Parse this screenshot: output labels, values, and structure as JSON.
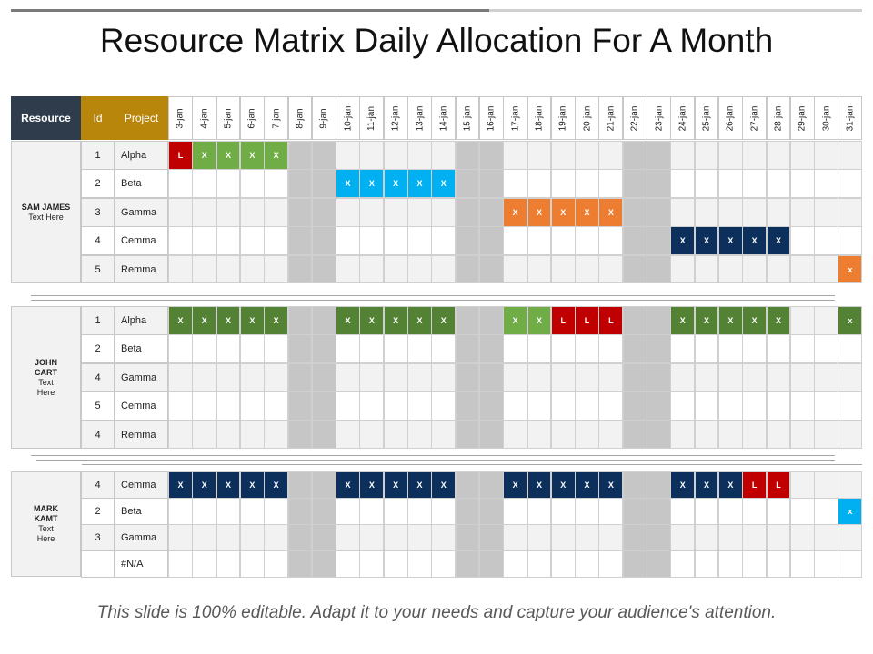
{
  "title": "Resource Matrix Daily Allocation For A Month",
  "footer": "This slide is 100% editable. Adapt it to your needs and capture your audience's attention.",
  "header": {
    "resource": "Resource",
    "id": "Id",
    "project": "Project"
  },
  "dates": [
    "3-jan",
    "4-jan",
    "5-jan",
    "6-jan",
    "7-jan",
    "8-jan",
    "9-jan",
    "10-jan",
    "11-jan",
    "12-jan",
    "13-jan",
    "14-jan",
    "15-jan",
    "16-jan",
    "17-jan",
    "18-jan",
    "19-jan",
    "20-jan",
    "21-jan",
    "22-jan",
    "23-jan",
    "24-jan",
    "25-jan",
    "26-jan",
    "27-jan",
    "28-jan",
    "29-jan",
    "30-jan",
    "31-jan"
  ],
  "weekend_day_indexes": [
    5,
    6,
    12,
    13,
    19,
    20
  ],
  "colors": {
    "red": "#c00000",
    "green": "#70ad47",
    "dgreen": "#548235",
    "blue": "#00b0f0",
    "orange": "#ed7d31",
    "navy": "#0d2f5c",
    "weekend": "#c6c6c6",
    "row_even": "#f2f2f2",
    "row_odd": "#ffffff",
    "header_dark": "#2f3c4c",
    "header_gold": "#b8860b"
  },
  "groups": [
    {
      "name": "SAM JAMES",
      "sub": "Text Here",
      "rows": [
        {
          "id": "1",
          "project": "Alpha",
          "marks": [
            {
              "start": 0,
              "labels": [
                "L"
              ],
              "color": "red"
            },
            {
              "start": 1,
              "labels": [
                "X",
                "X",
                "X",
                "X"
              ],
              "color": "green"
            }
          ]
        },
        {
          "id": "2",
          "project": "Beta",
          "marks": [
            {
              "start": 7,
              "labels": [
                "X",
                "X",
                "X",
                "X",
                "X"
              ],
              "color": "blue"
            }
          ]
        },
        {
          "id": "3",
          "project": "Gamma",
          "marks": [
            {
              "start": 14,
              "labels": [
                "X",
                "X",
                "X",
                "X",
                "X"
              ],
              "color": "orange"
            }
          ]
        },
        {
          "id": "4",
          "project": "Cemma",
          "marks": [
            {
              "start": 21,
              "labels": [
                "X",
                "X",
                "X",
                "X",
                "X"
              ],
              "color": "navy"
            }
          ]
        },
        {
          "id": "5",
          "project": "Remma",
          "marks": [
            {
              "start": 28,
              "labels": [
                "x"
              ],
              "color": "orange"
            }
          ]
        }
      ]
    },
    {
      "name": "JOHN CART",
      "sub": "Text Here",
      "rows": [
        {
          "id": "1",
          "project": "Alpha",
          "marks": [
            {
              "start": 0,
              "labels": [
                "X",
                "X",
                "X",
                "X",
                "X"
              ],
              "color": "dgreen"
            },
            {
              "start": 7,
              "labels": [
                "X",
                "X",
                "X",
                "X",
                "X"
              ],
              "color": "dgreen"
            },
            {
              "start": 14,
              "labels": [
                "X",
                "X"
              ],
              "color": "green"
            },
            {
              "start": 16,
              "labels": [
                "L",
                "L",
                "L"
              ],
              "color": "red"
            },
            {
              "start": 21,
              "labels": [
                "X",
                "X",
                "X",
                "X",
                "X"
              ],
              "color": "dgreen"
            },
            {
              "start": 28,
              "labels": [
                "x"
              ],
              "color": "dgreen"
            }
          ]
        },
        {
          "id": "2",
          "project": "Beta",
          "marks": []
        },
        {
          "id": "4",
          "project": "Gamma",
          "marks": []
        },
        {
          "id": "5",
          "project": "Cemma",
          "marks": []
        },
        {
          "id": "4",
          "project": "Remma",
          "marks": []
        }
      ]
    },
    {
      "name": "MARK KAMT",
      "sub": "Text Here",
      "rows": [
        {
          "id": "4",
          "project": "Cemma",
          "marks": [
            {
              "start": 0,
              "labels": [
                "X",
                "X",
                "X",
                "X",
                "X"
              ],
              "color": "navy"
            },
            {
              "start": 7,
              "labels": [
                "X",
                "X",
                "X",
                "X",
                "X"
              ],
              "color": "navy"
            },
            {
              "start": 14,
              "labels": [
                "X",
                "X",
                "X",
                "X",
                "X"
              ],
              "color": "navy"
            },
            {
              "start": 21,
              "labels": [
                "X",
                "X",
                "X"
              ],
              "color": "navy"
            },
            {
              "start": 24,
              "labels": [
                "L",
                "L"
              ],
              "color": "red"
            }
          ]
        },
        {
          "id": "2",
          "project": "Beta",
          "marks": [
            {
              "start": 28,
              "labels": [
                "x"
              ],
              "color": "blue"
            }
          ]
        },
        {
          "id": "3",
          "project": "Gamma",
          "marks": []
        },
        {
          "id": "",
          "project": "#N/A",
          "marks": []
        }
      ]
    }
  ]
}
